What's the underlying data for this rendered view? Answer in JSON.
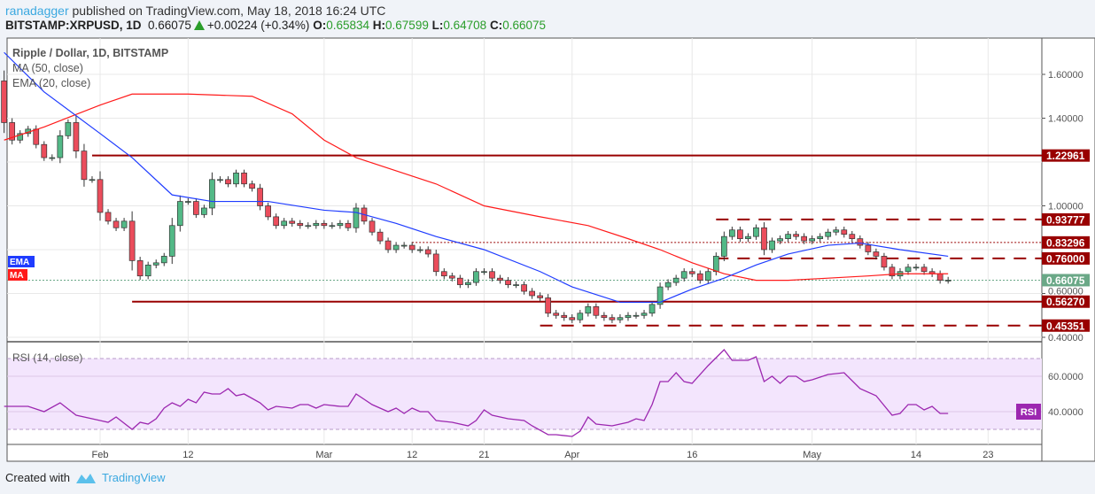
{
  "header": {
    "author": "ranadagger",
    "published": " published on TradingView.com, May 18, 2018 16:24 UTC",
    "symbol": "BITSTAMP:XRPUSD, 1D",
    "last": "0.66075",
    "change": "+0.00224 (+0.34%)",
    "o_label": "O:",
    "o": "0.65834",
    "h_label": "H:",
    "h": "0.67599",
    "l_label": "L:",
    "l": "0.64708",
    "c_label": "C:",
    "c": "0.66075"
  },
  "footer": {
    "created_with": "Created with",
    "brand": "TradingView"
  },
  "colors": {
    "up": "#53b987",
    "down": "#eb4d5c",
    "ema": "#1f3cff",
    "ma": "#ff1a1a",
    "level": "#990000",
    "last": "#6aa887",
    "rsi": "#9c27b0",
    "rsi_band": "#f3e5fd"
  },
  "chart_data": [
    {
      "type": "candlestick",
      "title": "Ripple / Dollar, 1D, BITSTAMP",
      "yaxis_side": "right",
      "ylim": [
        0.4,
        1.7
      ],
      "yticks": [
        "1.60000",
        "1.40000",
        "1.00000",
        "0.60000",
        "0.40000"
      ],
      "ytick_values": [
        1.6,
        1.4,
        1.0,
        0.6,
        0.4
      ],
      "xticks": [
        {
          "date": "2018-02-01",
          "label": "Feb"
        },
        {
          "date": "2018-02-12",
          "label": "12"
        },
        {
          "date": "2018-03-01",
          "label": "Mar"
        },
        {
          "date": "2018-03-12",
          "label": "12"
        },
        {
          "date": "2018-03-21",
          "label": "21"
        },
        {
          "date": "2018-04-01",
          "label": "Apr"
        },
        {
          "date": "2018-04-16",
          "label": "16"
        },
        {
          "date": "2018-05-01",
          "label": "May"
        },
        {
          "date": "2018-05-14",
          "label": "14"
        },
        {
          "date": "2018-05-23",
          "label": "23"
        }
      ],
      "start_date": "2018-01-20",
      "close": [
        1.38,
        1.3,
        1.33,
        1.35,
        1.28,
        1.22,
        1.22,
        1.32,
        1.38,
        1.25,
        1.12,
        1.12,
        0.97,
        0.93,
        0.9,
        0.93,
        0.75,
        0.68,
        0.73,
        0.74,
        0.77,
        0.91,
        1.02,
        1.02,
        0.96,
        0.99,
        1.12,
        1.12,
        1.1,
        1.15,
        1.1,
        1.08,
        1.0,
        0.95,
        0.91,
        0.93,
        0.92,
        0.91,
        0.91,
        0.92,
        0.91,
        0.91,
        0.92,
        0.9,
        0.99,
        0.93,
        0.88,
        0.84,
        0.8,
        0.82,
        0.82,
        0.8,
        0.8,
        0.78,
        0.7,
        0.68,
        0.67,
        0.64,
        0.65,
        0.7,
        0.7,
        0.67,
        0.66,
        0.64,
        0.64,
        0.61,
        0.59,
        0.58,
        0.51,
        0.5,
        0.49,
        0.48,
        0.51,
        0.54,
        0.5,
        0.49,
        0.48,
        0.49,
        0.5,
        0.5,
        0.51,
        0.55,
        0.63,
        0.65,
        0.67,
        0.7,
        0.69,
        0.66,
        0.7,
        0.77,
        0.86,
        0.89,
        0.85,
        0.86,
        0.9,
        0.8,
        0.84,
        0.85,
        0.87,
        0.86,
        0.84,
        0.85,
        0.86,
        0.88,
        0.89,
        0.87,
        0.85,
        0.82,
        0.79,
        0.77,
        0.72,
        0.68,
        0.7,
        0.72,
        0.72,
        0.7,
        0.69,
        0.66,
        0.66075
      ],
      "first_open": 1.57,
      "indicators": [
        {
          "name": "MA (50, close)",
          "label": "MA",
          "color": "#ff1a1a",
          "points": [
            [
              "2018-01-20",
              1.3
            ],
            [
              "2018-01-25",
              1.36
            ],
            [
              "2018-02-01",
              1.46
            ],
            [
              "2018-02-05",
              1.51
            ],
            [
              "2018-02-12",
              1.51
            ],
            [
              "2018-02-20",
              1.5
            ],
            [
              "2018-02-25",
              1.42
            ],
            [
              "2018-03-01",
              1.3
            ],
            [
              "2018-03-05",
              1.22
            ],
            [
              "2018-03-10",
              1.16
            ],
            [
              "2018-03-15",
              1.1
            ],
            [
              "2018-03-21",
              1.0
            ],
            [
              "2018-03-28",
              0.95
            ],
            [
              "2018-04-03",
              0.91
            ],
            [
              "2018-04-08",
              0.85
            ],
            [
              "2018-04-12",
              0.8
            ],
            [
              "2018-04-16",
              0.74
            ],
            [
              "2018-04-20",
              0.69
            ],
            [
              "2018-04-24",
              0.66
            ],
            [
              "2018-04-28",
              0.66
            ],
            [
              "2018-05-03",
              0.67
            ],
            [
              "2018-05-08",
              0.68
            ],
            [
              "2018-05-12",
              0.69
            ],
            [
              "2018-05-18",
              0.69
            ]
          ]
        },
        {
          "name": "EMA (20, close)",
          "label": "EMA",
          "color": "#1f3cff",
          "points": [
            [
              "2018-01-20",
              1.7
            ],
            [
              "2018-01-25",
              1.52
            ],
            [
              "2018-02-01",
              1.33
            ],
            [
              "2018-02-05",
              1.22
            ],
            [
              "2018-02-10",
              1.05
            ],
            [
              "2018-02-15",
              1.02
            ],
            [
              "2018-02-22",
              1.02
            ],
            [
              "2018-03-01",
              0.98
            ],
            [
              "2018-03-05",
              0.97
            ],
            [
              "2018-03-10",
              0.92
            ],
            [
              "2018-03-15",
              0.86
            ],
            [
              "2018-03-21",
              0.8
            ],
            [
              "2018-03-28",
              0.7
            ],
            [
              "2018-04-01",
              0.63
            ],
            [
              "2018-04-07",
              0.56
            ],
            [
              "2018-04-12",
              0.56
            ],
            [
              "2018-04-16",
              0.62
            ],
            [
              "2018-04-20",
              0.67
            ],
            [
              "2018-04-24",
              0.73
            ],
            [
              "2018-04-28",
              0.78
            ],
            [
              "2018-05-03",
              0.82
            ],
            [
              "2018-05-07",
              0.83
            ],
            [
              "2018-05-12",
              0.8
            ],
            [
              "2018-05-18",
              0.77
            ]
          ]
        }
      ],
      "levels": [
        {
          "value": 1.22961,
          "label": "1.22961",
          "style": "solid",
          "from": "2018-01-31"
        },
        {
          "value": 0.93777,
          "label": "0.93777",
          "style": "dashed",
          "from": "2018-04-19"
        },
        {
          "value": 0.83296,
          "label": "0.83296",
          "style": "dotted",
          "from": "2018-03-12"
        },
        {
          "value": 0.76,
          "label": "0.76000",
          "style": "dashed",
          "from": "2018-04-19"
        },
        {
          "value": 0.5627,
          "label": "0.56270",
          "style": "solid",
          "from": "2018-02-05"
        },
        {
          "value": 0.45351,
          "label": "0.45351",
          "style": "dashed",
          "from": "2018-03-28"
        }
      ],
      "last_price": {
        "value": 0.66075,
        "label": "0.66075"
      }
    },
    {
      "type": "line",
      "title": "RSI (14, close)",
      "badge": "RSI",
      "ylim": [
        20,
        80
      ],
      "bands": [
        30,
        70
      ],
      "yticks": [
        "60.0000",
        "40.0000"
      ],
      "ytick_values": [
        60,
        40
      ],
      "points": [
        [
          "2018-01-20",
          43
        ],
        [
          "2018-01-23",
          43
        ],
        [
          "2018-01-25",
          40
        ],
        [
          "2018-01-27",
          45
        ],
        [
          "2018-01-29",
          38
        ],
        [
          "2018-02-01",
          35
        ],
        [
          "2018-02-02",
          34
        ],
        [
          "2018-02-03",
          37
        ],
        [
          "2018-02-05",
          30
        ],
        [
          "2018-02-06",
          34
        ],
        [
          "2018-02-07",
          33
        ],
        [
          "2018-02-08",
          36
        ],
        [
          "2018-02-09",
          42
        ],
        [
          "2018-02-10",
          45
        ],
        [
          "2018-02-11",
          43
        ],
        [
          "2018-02-12",
          47
        ],
        [
          "2018-02-13",
          45
        ],
        [
          "2018-02-14",
          51
        ],
        [
          "2018-02-15",
          50
        ],
        [
          "2018-02-16",
          50
        ],
        [
          "2018-02-17",
          53
        ],
        [
          "2018-02-18",
          49
        ],
        [
          "2018-02-19",
          50
        ],
        [
          "2018-02-21",
          45
        ],
        [
          "2018-02-22",
          41
        ],
        [
          "2018-02-23",
          43
        ],
        [
          "2018-02-25",
          42
        ],
        [
          "2018-02-26",
          44
        ],
        [
          "2018-02-27",
          44
        ],
        [
          "2018-02-28",
          42
        ],
        [
          "2018-03-01",
          44
        ],
        [
          "2018-03-03",
          43
        ],
        [
          "2018-03-04",
          43
        ],
        [
          "2018-03-05",
          50
        ],
        [
          "2018-03-06",
          47
        ],
        [
          "2018-03-07",
          44
        ],
        [
          "2018-03-09",
          40
        ],
        [
          "2018-03-10",
          42
        ],
        [
          "2018-03-11",
          39
        ],
        [
          "2018-03-12",
          42
        ],
        [
          "2018-03-13",
          40
        ],
        [
          "2018-03-14",
          40
        ],
        [
          "2018-03-15",
          35
        ],
        [
          "2018-03-17",
          34
        ],
        [
          "2018-03-19",
          32
        ],
        [
          "2018-03-20",
          35
        ],
        [
          "2018-03-21",
          41
        ],
        [
          "2018-03-22",
          38
        ],
        [
          "2018-03-24",
          36
        ],
        [
          "2018-03-26",
          35
        ],
        [
          "2018-03-27",
          32
        ],
        [
          "2018-03-29",
          27
        ],
        [
          "2018-03-30",
          27
        ],
        [
          "2018-04-01",
          26
        ],
        [
          "2018-04-02",
          29
        ],
        [
          "2018-04-03",
          37
        ],
        [
          "2018-04-04",
          33
        ],
        [
          "2018-04-06",
          32
        ],
        [
          "2018-04-08",
          34
        ],
        [
          "2018-04-09",
          36
        ],
        [
          "2018-04-10",
          35
        ],
        [
          "2018-04-11",
          44
        ],
        [
          "2018-04-12",
          57
        ],
        [
          "2018-04-13",
          57
        ],
        [
          "2018-04-14",
          62
        ],
        [
          "2018-04-15",
          57
        ],
        [
          "2018-04-16",
          56
        ],
        [
          "2018-04-18",
          66
        ],
        [
          "2018-04-20",
          75
        ],
        [
          "2018-04-21",
          69
        ],
        [
          "2018-04-23",
          69
        ],
        [
          "2018-04-24",
          71
        ],
        [
          "2018-04-25",
          57
        ],
        [
          "2018-04-26",
          60
        ],
        [
          "2018-04-27",
          56
        ],
        [
          "2018-04-28",
          60
        ],
        [
          "2018-04-29",
          60
        ],
        [
          "2018-04-30",
          57
        ],
        [
          "2018-05-01",
          58
        ],
        [
          "2018-05-03",
          61
        ],
        [
          "2018-05-05",
          62
        ],
        [
          "2018-05-07",
          53
        ],
        [
          "2018-05-09",
          49
        ],
        [
          "2018-05-11",
          38
        ],
        [
          "2018-05-12",
          39
        ],
        [
          "2018-05-13",
          44
        ],
        [
          "2018-05-14",
          44
        ],
        [
          "2018-05-15",
          41
        ],
        [
          "2018-05-16",
          43
        ],
        [
          "2018-05-17",
          39
        ],
        [
          "2018-05-18",
          39
        ]
      ]
    }
  ]
}
